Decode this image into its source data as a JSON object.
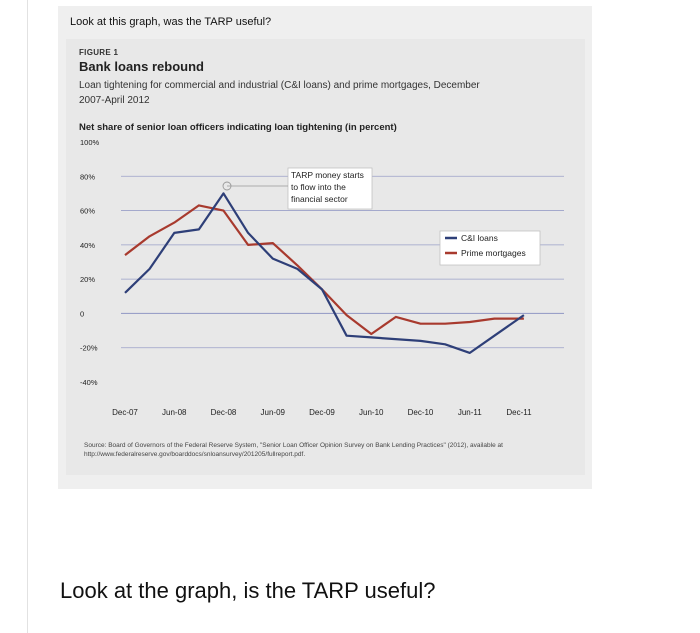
{
  "question_top": "Look at this graph, was the TARP useful?",
  "question_bottom": "Look at the graph, is the TARP useful?",
  "figure": {
    "label": "FIGURE 1",
    "title": "Bank loans rebound",
    "subtitle": "Loan tightening for commercial and industrial (C&I loans) and prime mortgages, December 2007-April 2012",
    "measure": "Net share of senior loan officers indicating loan tightening (in percent)",
    "source": "Source: Board of Governors of the Federal Reserve System, \"Senior Loan Officer Opinion Survey on Bank Lending Practices\" (2012), available at http://www.federalreserve.gov/boarddocs/snloansurvey/201205/fullreport.pdf.",
    "annotation": [
      "TARP money starts",
      "to flow into the",
      "financial sector"
    ]
  },
  "colors": {
    "ci_loans": "#2e3f78",
    "prime_mortgages": "#a83a2e",
    "grid": "#9aa0c8",
    "text": "#222222"
  },
  "chart_data": {
    "type": "line",
    "title": "Bank loans rebound",
    "ylabel": "Net share of senior loan officers indicating loan tightening (in percent)",
    "ylim": [
      -40,
      100
    ],
    "y_tick_labels": [
      "100%",
      "80%",
      "60%",
      "40%",
      "20%",
      "0",
      "-20%",
      "-40%"
    ],
    "x_tick_labels": [
      "Dec-07",
      "Jun-08",
      "Dec-08",
      "Jun-09",
      "Dec-09",
      "Jun-10",
      "Dec-10",
      "Jun-11",
      "Dec-11"
    ],
    "grid": true,
    "legend_position": "right",
    "series": [
      {
        "name": "C&I loans",
        "points": [
          [
            0,
            12
          ],
          [
            0.5,
            26
          ],
          [
            1,
            47
          ],
          [
            1.5,
            49
          ],
          [
            2,
            70
          ],
          [
            2.5,
            47
          ],
          [
            3,
            32
          ],
          [
            3.5,
            26
          ],
          [
            4,
            14
          ],
          [
            4.5,
            -13
          ],
          [
            5,
            -14
          ],
          [
            6,
            -16
          ],
          [
            6.5,
            -18
          ],
          [
            7,
            -23
          ],
          [
            7.5,
            -13
          ],
          [
            8.1,
            -1
          ]
        ]
      },
      {
        "name": "Prime mortgages",
        "points": [
          [
            0,
            34
          ],
          [
            0.5,
            45
          ],
          [
            1,
            53
          ],
          [
            1.5,
            63
          ],
          [
            2,
            60
          ],
          [
            2.5,
            40
          ],
          [
            3,
            41
          ],
          [
            3.5,
            28
          ],
          [
            4,
            14
          ],
          [
            4.5,
            -1
          ],
          [
            5,
            -12
          ],
          [
            5.5,
            -2
          ],
          [
            6,
            -6
          ],
          [
            6.5,
            -6
          ],
          [
            7,
            -5
          ],
          [
            7.5,
            -3
          ],
          [
            8.1,
            -3
          ]
        ]
      }
    ]
  }
}
